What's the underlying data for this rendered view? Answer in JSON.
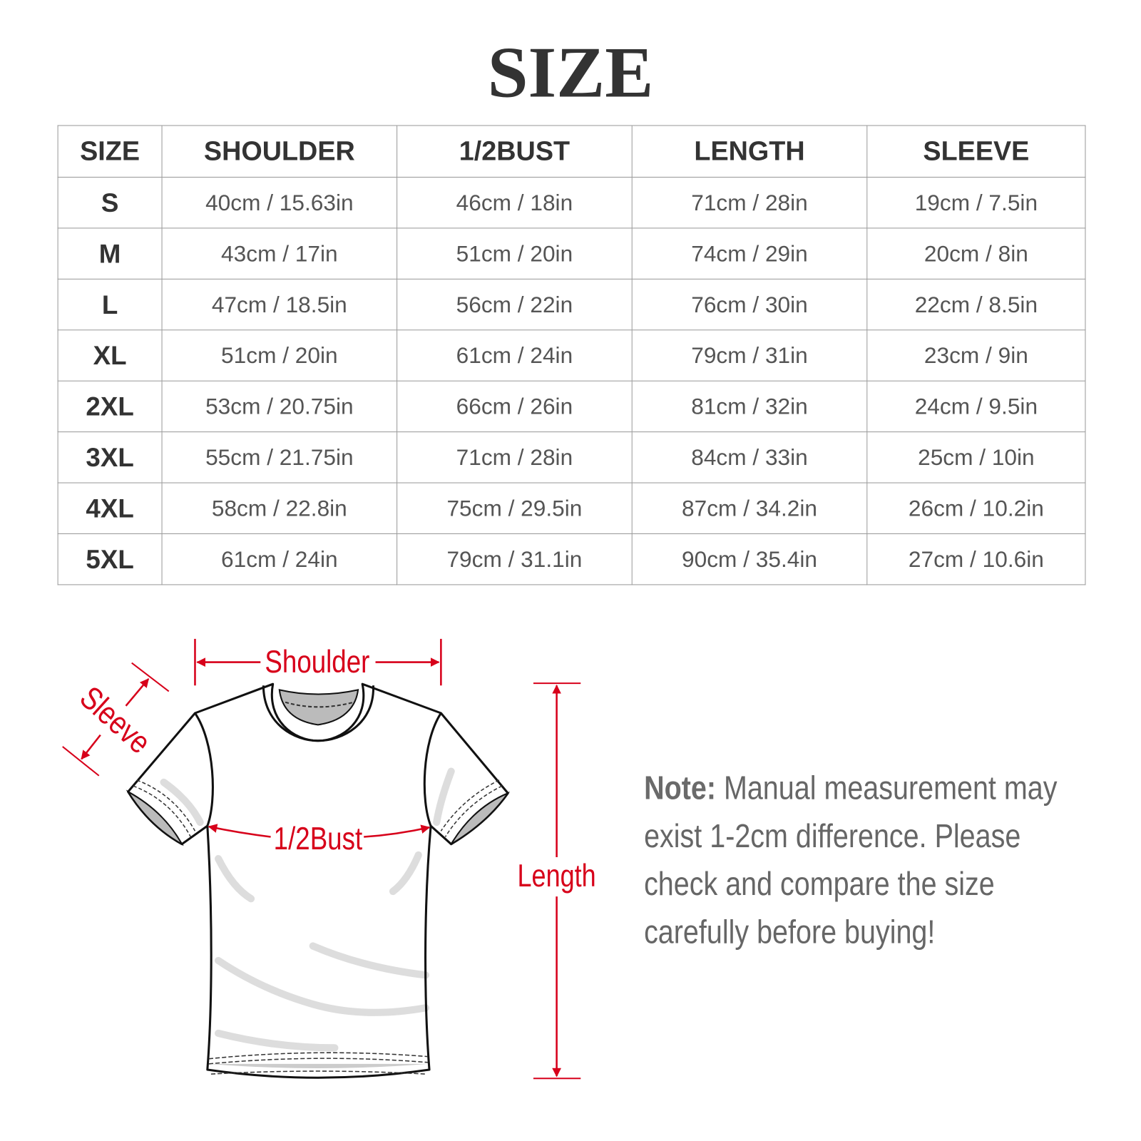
{
  "title": "SIZE",
  "table": {
    "headers": [
      "SIZE",
      "SHOULDER",
      "1/2BUST",
      "LENGTH",
      "SLEEVE"
    ],
    "rows": [
      [
        "S",
        "40cm / 15.63in",
        "46cm / 18in",
        "71cm / 28in",
        "19cm / 7.5in"
      ],
      [
        "M",
        "43cm / 17in",
        "51cm / 20in",
        "74cm / 29in",
        "20cm / 8in"
      ],
      [
        "L",
        "47cm / 18.5in",
        "56cm / 22in",
        "76cm / 30in",
        "22cm / 8.5in"
      ],
      [
        "XL",
        "51cm / 20in",
        "61cm / 24in",
        "79cm / 31in",
        "23cm / 9in"
      ],
      [
        "2XL",
        "53cm / 20.75in",
        "66cm / 26in",
        "81cm / 32in",
        "24cm / 9.5in"
      ],
      [
        "3XL",
        "55cm / 21.75in",
        "71cm / 28in",
        "84cm / 33in",
        "25cm / 10in"
      ],
      [
        "4XL",
        "58cm / 22.8in",
        "75cm / 29.5in",
        "87cm / 34.2in",
        "26cm / 10.2in"
      ],
      [
        "5XL",
        "61cm / 24in",
        "79cm / 31.1in",
        "90cm / 35.4in",
        "27cm / 10.6in"
      ]
    ]
  },
  "diagram": {
    "shoulder": "Shoulder",
    "sleeve": "Sleeve",
    "bust": "1/2Bust",
    "length": "Length",
    "accent_color": "#d7001a"
  },
  "note": {
    "label": "Note:",
    "text": "Manual measurement may exist 1-2cm difference. Please check and compare the size carefully before buying!"
  }
}
